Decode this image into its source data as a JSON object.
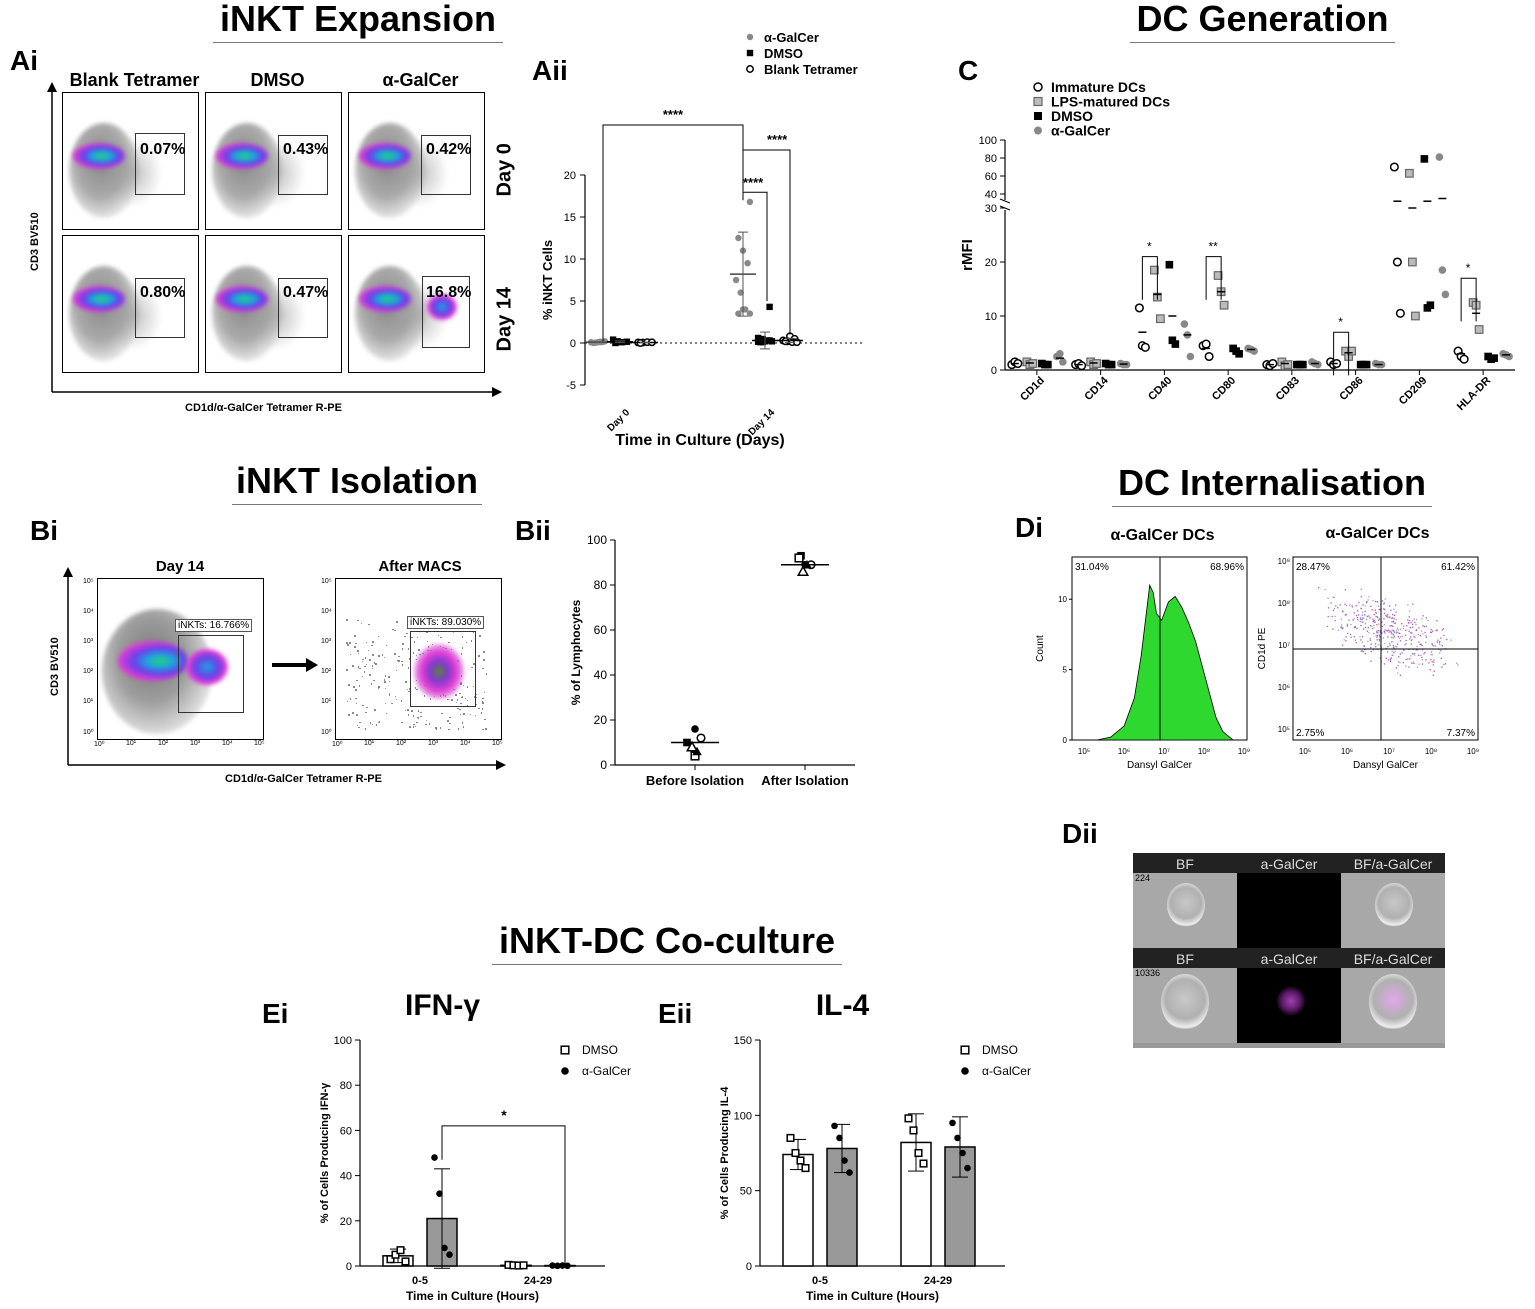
{
  "sections": {
    "expansion": "iNKT Expansion",
    "dc_generation": "DC Generation",
    "isolation": "iNKT Isolation",
    "internalisation": "DC Internalisation",
    "coculture": "iNKT-DC Co-culture"
  },
  "panel_labels": {
    "Ai": "Ai",
    "Aii": "Aii",
    "Bi": "Bi",
    "Bii": "Bii",
    "C": "C",
    "Di": "Di",
    "Dii": "Dii",
    "Ei": "Ei",
    "Eii": "Eii"
  },
  "Ai": {
    "columns": [
      "Blank Tetramer",
      "DMSO",
      "α-GalCer"
    ],
    "rows": [
      "Day 0",
      "Day 14"
    ],
    "gates": [
      [
        "0.07%",
        "0.43%",
        "0.42%"
      ],
      [
        "0.80%",
        "0.47%",
        "16.8%"
      ]
    ],
    "ylabel": "CD3 BV510",
    "xlabel": "CD1d/α-GalCer Tetramer R-PE"
  },
  "Bi": {
    "panels": [
      "Day 14",
      "After MACS"
    ],
    "gates": [
      "iNKTs: 16.766%",
      "iNKTs: 89.030%"
    ],
    "ylabel": "CD3 BV510",
    "xlabel": "CD1d/α-GalCer Tetramer R-PE",
    "ticks": [
      "10⁰",
      "10¹",
      "10²",
      "10³",
      "10⁴",
      "10⁵"
    ]
  },
  "Di": {
    "titles": [
      "α-GalCer DCs",
      "α-GalCer DCs"
    ],
    "hist_pcts": [
      "31.04%",
      "68.96%"
    ],
    "quad_pcts": [
      "28.47%",
      "61.42%",
      "2.75%",
      "7.37%"
    ],
    "hist_ylabel": "Count",
    "hist_yticks": [
      "0",
      "5",
      "10"
    ],
    "quad_ylabel": "CD1d PE",
    "xlabel": "Dansyl GalCer",
    "xticks": [
      "10⁵",
      "10⁶",
      "10⁷",
      "10⁸",
      "10⁹"
    ],
    "quad_yticks": [
      "10⁵",
      "10⁶",
      "10⁷",
      "10⁸",
      "10⁹"
    ]
  },
  "Dii": {
    "headers": [
      "BF",
      "a-GalCer",
      "BF/a-GalCer"
    ],
    "ids": [
      "224",
      "10336"
    ]
  },
  "chart_data": [
    {
      "id": "Aii",
      "type": "scatter",
      "ylabel": "% iNKT Cells",
      "xlabel": "Time in  Culture (Days)",
      "categories": [
        "Day 0",
        "Day 14"
      ],
      "ylim": [
        -5,
        20
      ],
      "yticks": [
        -5,
        0,
        5,
        10,
        15,
        20
      ],
      "legend": [
        "α-GalCer",
        "DMSO",
        "Blank  Tetramer"
      ],
      "series": [
        {
          "name": "α-GalCer",
          "color": "#888888",
          "marker": "circle-filled",
          "points": [
            [
              0,
              0.1
            ],
            [
              0,
              0.05
            ],
            [
              0,
              0.15
            ],
            [
              0,
              0.2
            ],
            [
              0,
              0.0
            ],
            [
              0,
              0.1
            ],
            [
              0,
              0.12
            ],
            [
              0,
              0.08
            ],
            [
              0,
              0.05
            ],
            [
              0,
              0.1
            ],
            [
              1,
              16.8
            ],
            [
              1,
              12.5
            ],
            [
              1,
              11.0
            ],
            [
              1,
              9.5
            ],
            [
              1,
              7.5
            ],
            [
              1,
              6.0
            ],
            [
              1,
              4.0
            ],
            [
              1,
              3.5
            ],
            [
              1,
              3.5
            ],
            [
              1,
              4.0
            ]
          ],
          "mean": [
            0.1,
            8.2
          ],
          "sd": [
            0.05,
            5.0
          ]
        },
        {
          "name": "DMSO",
          "color": "#000000",
          "marker": "square-filled",
          "points": [
            [
              0,
              0.4
            ],
            [
              0,
              0.2
            ],
            [
              0,
              0.1
            ],
            [
              0,
              0.15
            ],
            [
              0,
              0.0
            ],
            [
              0,
              0.1
            ],
            [
              1,
              4.3
            ],
            [
              1,
              0.6
            ],
            [
              1,
              0.47
            ],
            [
              1,
              0.3
            ],
            [
              1,
              0.2
            ],
            [
              1,
              0.1
            ],
            [
              1,
              0.2
            ],
            [
              1,
              0.3
            ],
            [
              1,
              0.15
            ],
            [
              1,
              0.1
            ]
          ],
          "mean": [
            0.15,
            0.3
          ],
          "sd": [
            0.1,
            1.0
          ]
        },
        {
          "name": "Blank  Tetramer",
          "color": "#000000",
          "marker": "circle-open",
          "points": [
            [
              0,
              0.07
            ],
            [
              0,
              0.05
            ],
            [
              0,
              0.1
            ],
            [
              0,
              0.08
            ],
            [
              0,
              0.0
            ],
            [
              1,
              0.8
            ],
            [
              1,
              0.5
            ],
            [
              1,
              0.3
            ],
            [
              1,
              0.2
            ],
            [
              1,
              0.1
            ],
            [
              1,
              0.1
            ],
            [
              1,
              0.2
            ]
          ],
          "mean": [
            0.06,
            0.3
          ],
          "sd": [
            0.02,
            0.25
          ]
        }
      ],
      "significance": [
        {
          "label": "****",
          "from": [
            "Day 0",
            "Blank  Tetramer"
          ],
          "to": [
            "Day 14",
            "α-GalCer"
          ]
        },
        {
          "label": "****",
          "from": [
            "Day 14",
            "α-GalCer"
          ],
          "to": [
            "Day 14",
            "DMSO"
          ]
        },
        {
          "label": "****",
          "from": [
            "Day 14",
            "α-GalCer"
          ],
          "to": [
            "Day 14",
            "Blank  Tetramer"
          ]
        }
      ]
    },
    {
      "id": "C",
      "type": "scatter",
      "ylabel": "rMFI",
      "categories": [
        "CD1d",
        "CD14",
        "CD40",
        "CD80",
        "CD83",
        "CD86",
        "CD209",
        "HLA-DR"
      ],
      "yticks_lower": [
        0,
        10,
        20,
        30
      ],
      "yticks_upper": [
        40,
        60,
        80,
        100
      ],
      "legend": [
        "Immature DCs",
        "LPS-matured  DCs",
        "DMSO",
        "α-GalCer"
      ],
      "series": [
        {
          "name": "Immature DCs",
          "color": "#000000",
          "marker": "circle-open",
          "points": [
            [
              1.0,
              1.5,
              1.2
            ],
            [
              1.0,
              1.2,
              0.8
            ],
            [
              11.5,
              4.5,
              4.2
            ],
            [
              4.5,
              4.8,
              2.5
            ],
            [
              1.0,
              0.8,
              1.2
            ],
            [
              1.5,
              1.0,
              1.2
            ],
            [
              70,
              20,
              10.5
            ],
            [
              3.5,
              2.5,
              2.0
            ]
          ],
          "mean": [
            1.2,
            1.0,
            7.0,
            4.0,
            1.0,
            1.2,
            32,
            3.0
          ]
        },
        {
          "name": "LPS-matured  DCs",
          "color": "#999999",
          "marker": "square-filled",
          "points": [
            [
              1.5,
              1.0,
              1.2
            ],
            [
              1.5,
              1.0,
              1.2
            ],
            [
              18.5,
              13.5,
              9.5
            ],
            [
              17.5,
              14.5,
              12.0
            ],
            [
              1.5,
              0.8,
              1.0
            ],
            [
              3.5,
              2.5,
              3.5
            ],
            [
              63,
              20,
              10.0
            ],
            [
              12.5,
              12.0,
              7.5
            ]
          ],
          "mean": [
            1.3,
            1.3,
            14.0,
            14.5,
            1.2,
            3.2,
            30,
            10.5
          ]
        },
        {
          "name": "DMSO",
          "color": "#000000",
          "marker": "square-filled",
          "points": [
            [
              1.2,
              1.0,
              1.0
            ],
            [
              1.2,
              1.0,
              1.0
            ],
            [
              19.5,
              5.5,
              4.8
            ],
            [
              4.0,
              3.5,
              3.0
            ],
            [
              1.0,
              1.0,
              1.0
            ],
            [
              1.0,
              1.0,
              1.0
            ],
            [
              79,
              11.5,
              12.0
            ],
            [
              2.5,
              2.0,
              2.2
            ]
          ],
          "mean": [
            1.1,
            1.0,
            10.0,
            3.5,
            1.0,
            1.0,
            32,
            2.3
          ]
        },
        {
          "name": "α-GalCer",
          "color": "#888888",
          "marker": "circle-filled",
          "points": [
            [
              2.5,
              3.0,
              1.5
            ],
            [
              1.2,
              1.0,
              1.0
            ],
            [
              8.5,
              6.5,
              2.5
            ],
            [
              4.0,
              3.8,
              3.5
            ],
            [
              1.5,
              1.2,
              1.0
            ],
            [
              1.2,
              1.0,
              1.0
            ],
            [
              81,
              18.5,
              14.0
            ],
            [
              3.0,
              2.8,
              2.5
            ]
          ],
          "mean": [
            2.2,
            1.1,
            6.5,
            3.8,
            1.2,
            1.0,
            35,
            2.8
          ]
        }
      ],
      "significance": [
        {
          "category": "CD40",
          "label": "*"
        },
        {
          "category": "CD80",
          "label": "**"
        },
        {
          "category": "CD86",
          "label": "*"
        },
        {
          "category": "HLA-DR",
          "label": "*"
        }
      ]
    },
    {
      "id": "Bii",
      "type": "scatter",
      "ylabel": "% of Lymphocytes",
      "categories": [
        "Before Isolation",
        "After Isolation"
      ],
      "ylim": [
        0,
        100
      ],
      "yticks": [
        0,
        20,
        40,
        60,
        80,
        100
      ],
      "series": [
        {
          "name": "square-filled",
          "values": [
            10,
            93
          ]
        },
        {
          "name": "circle-open",
          "values": [
            12,
            89
          ]
        },
        {
          "name": "circle-filled",
          "values": [
            16,
            89
          ]
        },
        {
          "name": "triangle-open",
          "values": [
            8,
            86
          ]
        },
        {
          "name": "square-open",
          "values": [
            4,
            92
          ]
        },
        {
          "name": "triangle-filled",
          "values": [
            6,
            89
          ]
        }
      ],
      "mean": [
        10,
        89
      ]
    },
    {
      "id": "Ei",
      "type": "bar",
      "title": "IFN-γ",
      "ylabel": "% of Cells Producing IFN-γ",
      "xlabel": "Time in Culture (Hours)",
      "categories": [
        "0-5",
        "24-29"
      ],
      "ylim": [
        0,
        100
      ],
      "yticks": [
        0,
        20,
        40,
        60,
        80,
        100
      ],
      "legend": [
        "DMSO",
        "α-GalCer"
      ],
      "series": [
        {
          "name": "DMSO",
          "values": [
            4.5,
            0.3
          ],
          "sd": [
            3.0,
            0.3
          ],
          "points": [
            [
              3,
              5,
              7,
              2
            ],
            [
              0.5,
              0.3,
              0.2,
              0.3
            ]
          ]
        },
        {
          "name": "α-GalCer",
          "values": [
            21,
            0.2
          ],
          "sd": [
            22,
            0.2
          ],
          "points": [
            [
              48,
              32,
              8,
              5
            ],
            [
              0.2,
              0.1,
              0.2,
              0.1
            ]
          ]
        }
      ],
      "significance": [
        {
          "label": "*",
          "from": [
            "0-5",
            "α-GalCer"
          ],
          "to": [
            "24-29",
            "α-GalCer"
          ]
        }
      ]
    },
    {
      "id": "Eii",
      "type": "bar",
      "title": "IL-4",
      "ylabel": "% of Cells Producing IL-4",
      "xlabel": "Time in Culture (Hours)",
      "categories": [
        "0-5",
        "24-29"
      ],
      "ylim": [
        0,
        150
      ],
      "yticks": [
        0,
        50,
        100,
        150
      ],
      "legend": [
        "DMSO",
        "α-GalCer"
      ],
      "series": [
        {
          "name": "DMSO",
          "values": [
            74,
            82
          ],
          "sd": [
            10,
            19
          ],
          "points": [
            [
              85,
              75,
              70,
              65
            ],
            [
              98,
              90,
              75,
              68
            ]
          ]
        },
        {
          "name": "α-GalCer",
          "values": [
            78,
            79
          ],
          "sd": [
            16,
            20
          ],
          "points": [
            [
              93,
              85,
              70,
              62
            ],
            [
              95,
              85,
              75,
              65
            ]
          ]
        }
      ]
    }
  ]
}
